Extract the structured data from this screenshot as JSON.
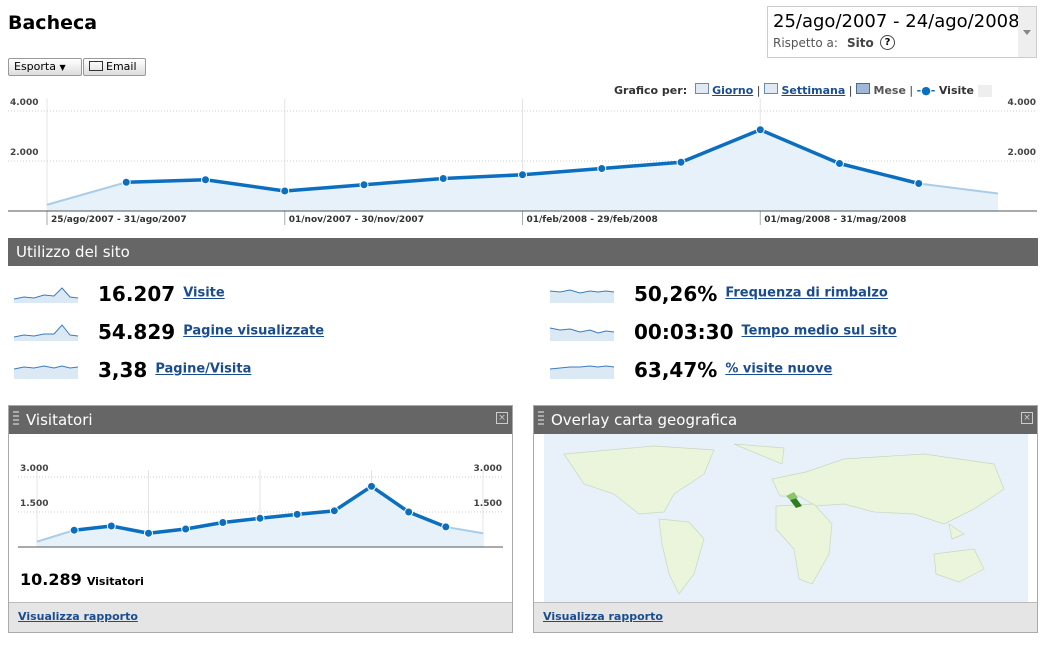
{
  "header": {
    "title": "Bacheca",
    "date_range": "25/ago/2007 - 24/ago/2008",
    "compare_label": "Rispetto a:",
    "compare_value": "Sito"
  },
  "toolbar": {
    "export": "Esporta",
    "email": "Email"
  },
  "graph_by": {
    "label": "Grafico per:",
    "options": [
      "Giorno",
      "Settimana",
      "Mese"
    ],
    "metric": "Visite"
  },
  "chart_data": [
    {
      "type": "line",
      "series": [
        {
          "name": "Visite",
          "color": "#0b6ebf",
          "values": [
            250,
            1150,
            1250,
            800,
            1050,
            1300,
            1450,
            1700,
            1950,
            3250,
            1900,
            1100,
            700
          ]
        }
      ],
      "categories": [
        "25/ago/2007 - 31/ago/2007",
        null,
        null,
        "01/nov/2007 - 30/nov/2007",
        null,
        null,
        "01/feb/2008 - 29/feb/2008",
        null,
        null,
        "01/mag/2008 - 31/mag/2008",
        null,
        null,
        null
      ],
      "ylim": [
        0,
        4500
      ],
      "yticks": [
        {
          "value": 2000,
          "label": "2.000"
        },
        {
          "value": 4000,
          "label": "4.000"
        }
      ],
      "grid": true
    },
    {
      "type": "line",
      "series": [
        {
          "name": "Visitatori",
          "color": "#0b6ebf",
          "values": [
            230,
            720,
            900,
            590,
            770,
            1050,
            1230,
            1400,
            1550,
            2600,
            1500,
            860,
            590
          ]
        }
      ],
      "ylim": [
        0,
        3300
      ],
      "yticks": [
        {
          "value": 1500,
          "label": "1.500"
        },
        {
          "value": 3000,
          "label": "3.000"
        }
      ],
      "grid": true
    }
  ],
  "site_usage": {
    "title": "Utilizzo del sito",
    "metrics": [
      {
        "value": "16.207",
        "label": "Visite"
      },
      {
        "value": "54.829",
        "label": "Pagine visualizzate"
      },
      {
        "value": "3,38",
        "label": "Pagine/Visita"
      },
      {
        "value": "50,26%",
        "label": "Frequenza di rimbalzo"
      },
      {
        "value": "00:03:30",
        "label": "Tempo medio sul sito"
      },
      {
        "value": "63,47%",
        "label": "% visite nuove"
      }
    ]
  },
  "visitors_panel": {
    "title": "Visitatori",
    "total": "10.289",
    "total_label": "Visitatori",
    "link": "Visualizza rapporto"
  },
  "map_panel": {
    "title": "Overlay carta geografica",
    "link": "Visualizza rapporto"
  }
}
